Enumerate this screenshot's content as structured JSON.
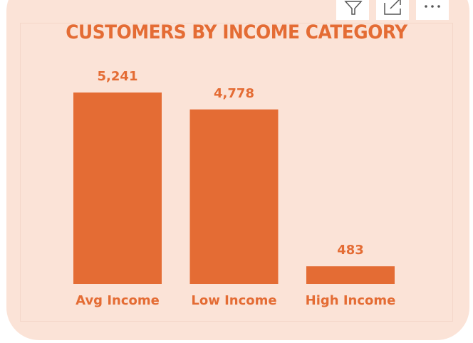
{
  "visual": {
    "title": "CUSTOMERS BY INCOME CATEGORY",
    "colors": {
      "background": "#fbe3d7",
      "accent": "#e46c34",
      "toolbar_bg": "#ffffff",
      "icon": "#555555"
    }
  },
  "toolbar": {
    "icons": [
      "filter-icon",
      "focus-mode-icon",
      "more-options-icon"
    ]
  },
  "chart_data": {
    "type": "bar",
    "title": "CUSTOMERS BY INCOME CATEGORY",
    "categories": [
      "Avg Income",
      "Low Income",
      "High Income"
    ],
    "values": [
      5241,
      4778,
      483
    ],
    "value_labels": [
      "5,241",
      "4,778",
      "483"
    ],
    "xlabel": "",
    "ylabel": "",
    "ylim": [
      0,
      5241
    ],
    "grid": false,
    "legend": "none",
    "bar_color": "#e46c34"
  }
}
